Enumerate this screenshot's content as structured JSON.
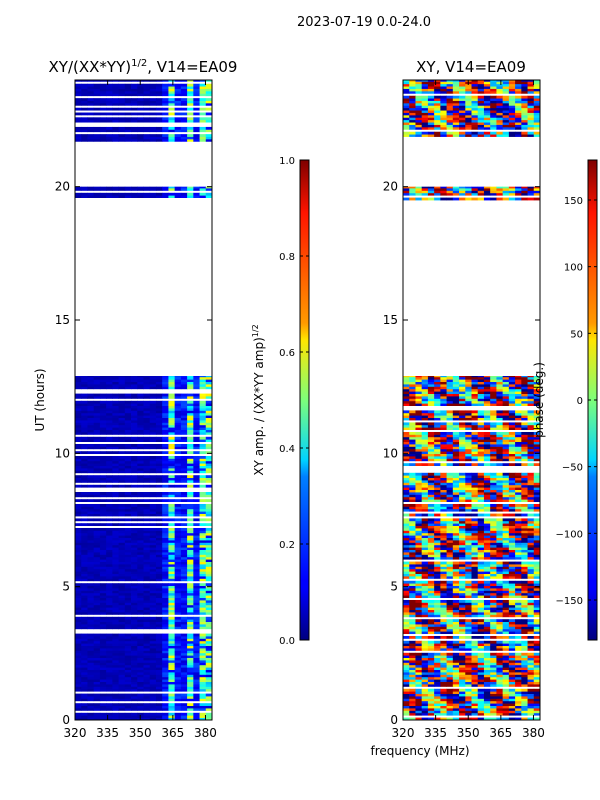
{
  "chart_data": [
    {
      "type": "heatmap",
      "suptitle": "2023-07-19 0.0-24.0",
      "title": "XY/(XX*YY)",
      "title_sup": "1/2",
      "title_tail": ", V14=EA09",
      "xlabel": "",
      "ylabel": "UT (hours)",
      "xlim": [
        320,
        383
      ],
      "ylim": [
        0,
        24
      ],
      "xticks": [
        320,
        335,
        350,
        365,
        380
      ],
      "yticks": [
        0,
        5,
        10,
        15,
        20
      ],
      "colorbar": {
        "label": "XY amp. / (XX*YY amp)",
        "label_sup": "1/2",
        "range": [
          0.0,
          1.0
        ],
        "ticks": [
          0.0,
          0.2,
          0.4,
          0.6,
          0.8,
          1.0
        ]
      },
      "data_blocks_ut": [
        [
          0.0,
          12.9
        ],
        [
          19.5,
          20.0
        ],
        [
          21.7,
          24.0
        ]
      ],
      "highlight_freq_mhz": [
        364,
        373,
        380
      ]
    },
    {
      "type": "heatmap",
      "title": "XY, V14=EA09",
      "xlabel": "frequency (MHz)",
      "ylabel": "",
      "xlim": [
        320,
        383
      ],
      "ylim": [
        0,
        24
      ],
      "xticks": [
        320,
        335,
        350,
        365,
        380
      ],
      "yticks": [
        0,
        5,
        10,
        15,
        20
      ],
      "colorbar": {
        "label": "phase (deg.)",
        "range": [
          -180,
          180
        ],
        "ticks": [
          -150,
          -100,
          -50,
          0,
          50,
          100,
          150
        ]
      },
      "data_blocks_ut": [
        [
          0.0,
          12.9
        ],
        [
          19.5,
          20.0
        ],
        [
          21.7,
          24.0
        ]
      ]
    }
  ]
}
